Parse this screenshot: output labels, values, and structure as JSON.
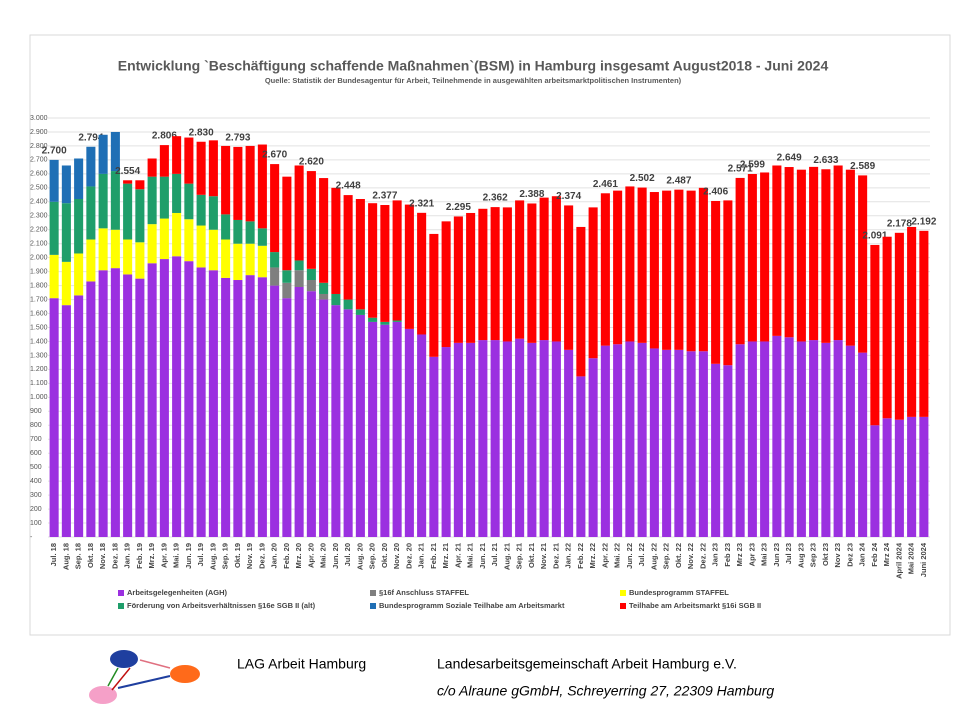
{
  "chart_data": {
    "type": "stacked_bar",
    "title": "Entwicklung `Beschäftigung schaffende Maßnahmen`(BSM) in Hamburg insgesamt August2018 - Juni 2024",
    "subtitle": "Quelle: Statistik der Bundesagentur für Arbeit, Teilnehmende in ausgewählten arbeitsmarktpolitischen Instrumenten)",
    "categories": [
      "Jul. 18",
      "Aug. 18",
      "Sep. 18",
      "Okt. 18",
      "Nov. 18",
      "Dez. 18",
      "Jan. 19",
      "Feb. 19",
      "Mrz. 19",
      "Apr. 19",
      "Mai. 19",
      "Jun. 19",
      "Jul. 19",
      "Aug. 19",
      "Sep. 19",
      "Okt. 19",
      "Nov. 19",
      "Dez. 19",
      "Jan. 20",
      "Feb. 20",
      "Mrz. 20",
      "Apr. 20",
      "Mai. 20",
      "Jun. 20",
      "Jul. 20",
      "Aug. 20",
      "Sep. 20",
      "Okt. 20",
      "Nov. 20",
      "Dez. 20",
      "Jan. 21",
      "Feb. 21",
      "Mrz. 21",
      "Apr. 21",
      "Mai. 21",
      "Jun. 21",
      "Jul. 21",
      "Aug. 21",
      "Sep. 21",
      "Okt. 21",
      "Nov. 21",
      "Dez. 21",
      "Jan. 22",
      "Feb. 22",
      "Mrz. 22",
      "Apr. 22",
      "Mai. 22",
      "Jun. 22",
      "Jul. 22",
      "Aug. 22",
      "Sep. 22",
      "Okt. 22",
      "Nov. 22",
      "Dez. 22",
      "Jan 23",
      "Feb 23",
      "Mrz 23",
      "Apr 23",
      "Mai 23",
      "Jun 23",
      "Jul 23",
      "Aug 23",
      "Sep 23",
      "Okt 23",
      "Nov 23",
      "Dez 23",
      "Jan 24",
      "Feb 24",
      "Mrz 24",
      "April 2024",
      "Mai 2024",
      "Juni 2024"
    ],
    "series": [
      {
        "name": "Arbeitsgelegenheiten (AGH)",
        "color": "#9b30e0",
        "values": [
          1710,
          1660,
          1730,
          1830,
          1910,
          1925,
          1880,
          1850,
          1960,
          1990,
          2010,
          1975,
          1930,
          1910,
          1855,
          1840,
          1875,
          1860,
          1800,
          1710,
          1790,
          1760,
          1700,
          1660,
          1630,
          1590,
          1540,
          1520,
          1540,
          1490,
          1450,
          1290,
          1360,
          1390,
          1390,
          1410,
          1410,
          1400,
          1420,
          1390,
          1410,
          1400,
          1340,
          1150,
          1280,
          1370,
          1380,
          1400,
          1390,
          1350,
          1340,
          1340,
          1330,
          1330,
          1240,
          1230,
          1380,
          1400,
          1400,
          1440,
          1430,
          1400,
          1410,
          1390,
          1410,
          1370,
          1320,
          800,
          850,
          840,
          860,
          860
        ]
      },
      {
        "name": "§16f Anschluss STAFFEL",
        "color": "#7f7f7f",
        "values": [
          null,
          null,
          null,
          null,
          null,
          null,
          null,
          null,
          null,
          null,
          null,
          null,
          null,
          null,
          null,
          null,
          null,
          null,
          130,
          110,
          120,
          80,
          40,
          null,
          null,
          null,
          null,
          null,
          null,
          null,
          null,
          null,
          null,
          null,
          null,
          null,
          null,
          null,
          null,
          null,
          null,
          null,
          null,
          null,
          null,
          null,
          null,
          null,
          null,
          null,
          null,
          null,
          null,
          null,
          null,
          null,
          null,
          null,
          null,
          null,
          null,
          null,
          null,
          null,
          null,
          null,
          null,
          null,
          null,
          null,
          null,
          null
        ]
      },
      {
        "name": "Bundesprogramm STAFFEL",
        "color": "#ffff00",
        "values": [
          310,
          310,
          300,
          300,
          300,
          275,
          250,
          260,
          280,
          290,
          310,
          300,
          300,
          290,
          275,
          260,
          225,
          225,
          null,
          null,
          null,
          null,
          null,
          null,
          null,
          null,
          null,
          null,
          null,
          null,
          null,
          null,
          null,
          null,
          null,
          null,
          null,
          null,
          null,
          null,
          null,
          null,
          null,
          null,
          null,
          null,
          null,
          null,
          null,
          null,
          null,
          null,
          null,
          null,
          null,
          null,
          null,
          null,
          null,
          null,
          null,
          null,
          null,
          null,
          null,
          null,
          null,
          null,
          null,
          null,
          null,
          null
        ]
      },
      {
        "name": "Förderung von Arbeitsverhältnissen §16e SGB II (alt)",
        "color": "#1f9e6a",
        "values": [
          380,
          420,
          390,
          380,
          390,
          420,
          400,
          380,
          340,
          300,
          280,
          255,
          220,
          240,
          180,
          170,
          160,
          125,
          110,
          90,
          70,
          80,
          80,
          80,
          70,
          40,
          30,
          20,
          10,
          null,
          null,
          null,
          null,
          null,
          null,
          null,
          null,
          null,
          null,
          null,
          null,
          null,
          null,
          null,
          null,
          null,
          null,
          null,
          null,
          null,
          null,
          null,
          null,
          null,
          null,
          null,
          null,
          null,
          null,
          null,
          null,
          null,
          null,
          null,
          null,
          null,
          null,
          null,
          null,
          null,
          null,
          null
        ]
      },
      {
        "name": "Bundesprogramm Soziale Teilhabe am Arbeitsmarkt",
        "color": "#1f6fb5",
        "values": [
          300,
          270,
          290,
          284,
          280,
          280,
          null,
          null,
          null,
          null,
          null,
          null,
          null,
          null,
          null,
          null,
          null,
          null,
          null,
          null,
          null,
          null,
          null,
          null,
          null,
          null,
          null,
          null,
          null,
          null,
          null,
          null,
          null,
          null,
          null,
          null,
          null,
          null,
          null,
          null,
          null,
          null,
          null,
          null,
          null,
          null,
          null,
          null,
          null,
          null,
          null,
          null,
          null,
          null,
          null,
          null,
          null,
          null,
          null,
          null,
          null,
          null,
          null,
          null,
          null,
          null,
          null,
          null,
          null,
          null,
          null,
          null
        ]
      },
      {
        "name": "Teilhabe am Arbeitsmarkt §16i SGB II",
        "color": "#ff0000",
        "values": [
          null,
          null,
          null,
          null,
          null,
          null,
          24,
          64,
          130,
          226,
          270,
          330,
          380,
          400,
          490,
          523,
          540,
          600,
          630,
          670,
          680,
          700,
          750,
          760,
          748,
          790,
          820,
          837,
          860,
          890,
          871,
          880,
          900,
          905,
          930,
          940,
          952,
          960,
          990,
          998,
          1020,
          1040,
          1034,
          1070,
          1080,
          1091,
          1100,
          1110,
          1112,
          1120,
          1140,
          1147,
          1150,
          1170,
          1166,
          1180,
          1191,
          1199,
          1210,
          1220,
          1219,
          1230,
          1240,
          1243,
          1250,
          1260,
          1269,
          1291,
          1300,
          1338,
          1360,
          1332
        ]
      }
    ],
    "totals": {
      "values": [
        2700,
        null,
        null,
        2794,
        null,
        null,
        2554,
        null,
        null,
        2806,
        null,
        null,
        2830,
        null,
        null,
        2793,
        null,
        null,
        2670,
        null,
        null,
        2620,
        null,
        null,
        2448,
        null,
        null,
        2377,
        null,
        null,
        2321,
        null,
        null,
        2295,
        null,
        null,
        2362,
        null,
        null,
        2388,
        null,
        null,
        2374,
        null,
        null,
        2461,
        null,
        null,
        2502,
        null,
        null,
        2487,
        null,
        null,
        2406,
        null,
        2571,
        2599,
        null,
        null,
        2649,
        null,
        null,
        2633,
        null,
        null,
        2589,
        2091,
        null,
        2178,
        null,
        2192
      ],
      "value_labels": [
        "2.700",
        null,
        null,
        "2.794",
        null,
        null,
        "2.554",
        null,
        null,
        "2.806",
        null,
        null,
        "2.830",
        null,
        null,
        "2.793",
        null,
        null,
        "2.670",
        null,
        null,
        "2.620",
        null,
        null,
        "2.448",
        null,
        null,
        "2.377",
        null,
        null,
        "2.321",
        null,
        null,
        "2.295",
        null,
        null,
        "2.362",
        null,
        null,
        "2.388",
        null,
        null,
        "2.374",
        null,
        null,
        "2.461",
        null,
        null,
        "2.502",
        null,
        null,
        "2.487",
        null,
        null,
        "2.406",
        null,
        "2.571",
        "2.599",
        null,
        null,
        "2.649",
        null,
        null,
        "2.633",
        null,
        null,
        "2.589",
        "2.091",
        null,
        "2.178",
        null,
        "2.192"
      ]
    },
    "ylim": [
      0,
      3000
    ],
    "yticks": [
      {
        "value": 0,
        "label": "-"
      },
      100,
      200,
      300,
      400,
      500,
      600,
      700,
      800,
      900,
      {
        "value": 1000,
        "label": "1.000"
      },
      {
        "value": 1100,
        "label": "1.100"
      },
      {
        "value": 1200,
        "label": "1.200"
      },
      {
        "value": 1300,
        "label": "1.300"
      },
      {
        "value": 1400,
        "label": "1.400"
      },
      {
        "value": 1500,
        "label": "1.500"
      },
      {
        "value": 1600,
        "label": "1.600"
      },
      {
        "value": 1700,
        "label": "1.700"
      },
      {
        "value": 1800,
        "label": "1.800"
      },
      {
        "value": 1900,
        "label": "1.900"
      },
      {
        "value": 2000,
        "label": "2.000"
      },
      {
        "value": 2100,
        "label": "2.100"
      },
      {
        "value": 2200,
        "label": "2.200"
      },
      {
        "value": 2300,
        "label": "2.300"
      },
      {
        "value": 2400,
        "label": "2.400"
      },
      {
        "value": 2500,
        "label": "2.500"
      },
      {
        "value": 2600,
        "label": "2.600"
      },
      {
        "value": 2700,
        "label": "2.700"
      },
      {
        "value": 2800,
        "label": "2.800"
      },
      {
        "value": 2900,
        "label": "2.900"
      },
      {
        "value": 3000,
        "label": "3.000"
      }
    ],
    "grid": true,
    "legend": "bottom"
  },
  "footer": {
    "org_short": "LAG Arbeit Hamburg",
    "org_full": "Landesarbeitsgemeinschaft Arbeit Hamburg e.V.",
    "address": "c/o Alraune gGmbH, Schreyerring 27, 22309 Hamburg"
  }
}
